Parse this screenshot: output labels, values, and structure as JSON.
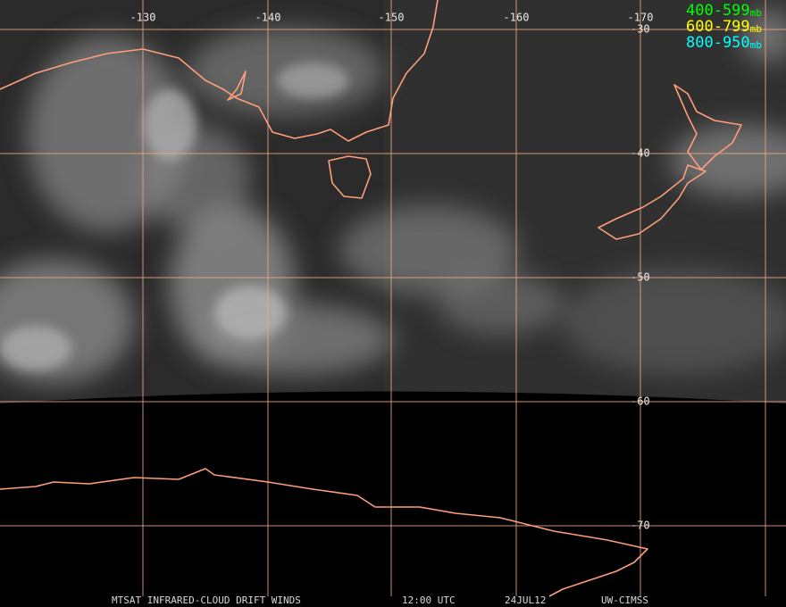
{
  "map": {
    "longitude_labels": [
      "-130",
      "-140",
      "-150",
      "-160",
      "-170"
    ],
    "latitude_labels": [
      "-30",
      "-40",
      "-50",
      "-60",
      "-70"
    ],
    "legend": [
      {
        "range": "400-599",
        "unit": "mb",
        "color": "#00ff00"
      },
      {
        "range": "600-799",
        "unit": "mb",
        "color": "#ffff00"
      },
      {
        "range": "800-950",
        "unit": "mb",
        "color": "#00ffff"
      }
    ],
    "footer": {
      "product": "MTSAT INFRARED-CLOUD DRIFT WINDS",
      "time": "12:00 UTC",
      "date": "24JUL12",
      "source": "UW-CIMSS"
    }
  }
}
